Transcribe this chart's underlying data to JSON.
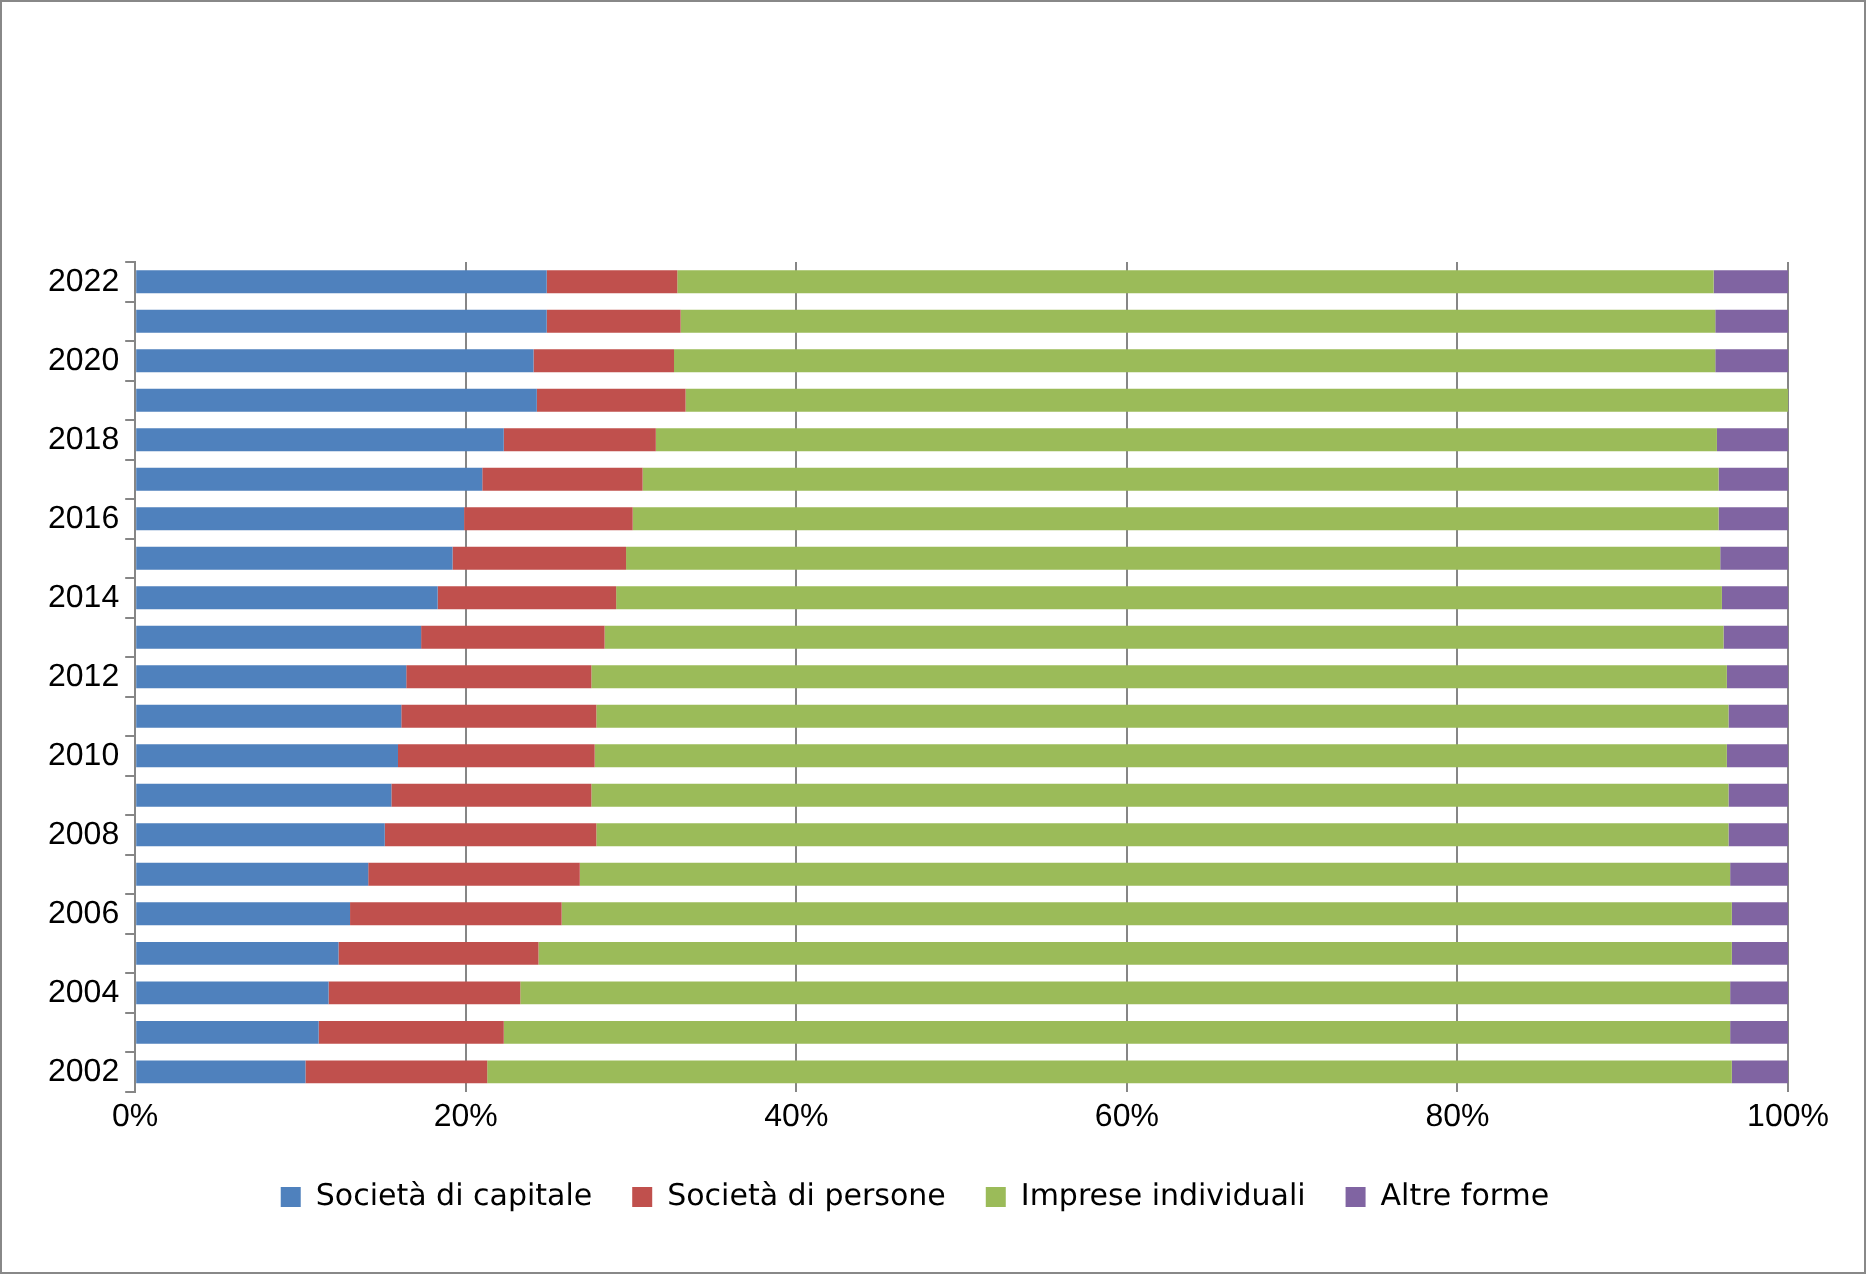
{
  "chart_data": {
    "type": "bar",
    "orientation": "horizontal",
    "stacked": true,
    "categories": [
      "2022",
      null,
      "2020",
      null,
      "2018",
      null,
      "2016",
      null,
      "2014",
      null,
      "2012",
      null,
      "2010",
      null,
      "2008",
      null,
      "2006",
      null,
      "2004",
      null,
      "2002"
    ],
    "series": [
      {
        "name": "Società di capitale",
        "color": "#4f81bd",
        "values": [
          24.9,
          24.9,
          24.1,
          24.3,
          22.3,
          21.0,
          19.9,
          19.2,
          18.3,
          17.3,
          16.4,
          16.1,
          15.9,
          15.5,
          15.1,
          14.1,
          13.0,
          12.3,
          11.7,
          11.1,
          10.3
        ]
      },
      {
        "name": "Società di persone",
        "color": "#c0504d",
        "values": [
          7.9,
          8.1,
          8.5,
          9.0,
          9.2,
          9.7,
          10.2,
          10.5,
          10.8,
          11.1,
          11.2,
          11.8,
          11.9,
          12.1,
          12.8,
          12.8,
          12.8,
          12.1,
          11.6,
          11.2,
          11.0
        ]
      },
      {
        "name": "Imprese individuali",
        "color": "#9bbb59",
        "values": [
          62.7,
          62.6,
          63.0,
          66.7,
          64.2,
          65.1,
          65.7,
          66.2,
          66.9,
          67.7,
          68.7,
          68.5,
          68.5,
          68.8,
          68.5,
          69.6,
          70.8,
          72.2,
          73.2,
          74.2,
          75.3
        ]
      },
      {
        "name": "Altre forme",
        "color": "#8064a2",
        "values": [
          4.5,
          4.4,
          4.4,
          0,
          4.3,
          4.2,
          4.2,
          4.1,
          4.0,
          3.9,
          3.7,
          3.6,
          3.7,
          3.6,
          3.6,
          3.5,
          3.4,
          3.4,
          3.5,
          3.5,
          3.4
        ]
      }
    ],
    "xlim": [
      0,
      100
    ],
    "xticks": [
      {
        "value": 0,
        "label": "0%"
      },
      {
        "value": 20,
        "label": "20%"
      },
      {
        "value": 40,
        "label": "40%"
      },
      {
        "value": 60,
        "label": "60%"
      },
      {
        "value": 80,
        "label": "80%"
      },
      {
        "value": 100,
        "label": "100%"
      }
    ],
    "grid": "x",
    "legend": "bottom"
  }
}
